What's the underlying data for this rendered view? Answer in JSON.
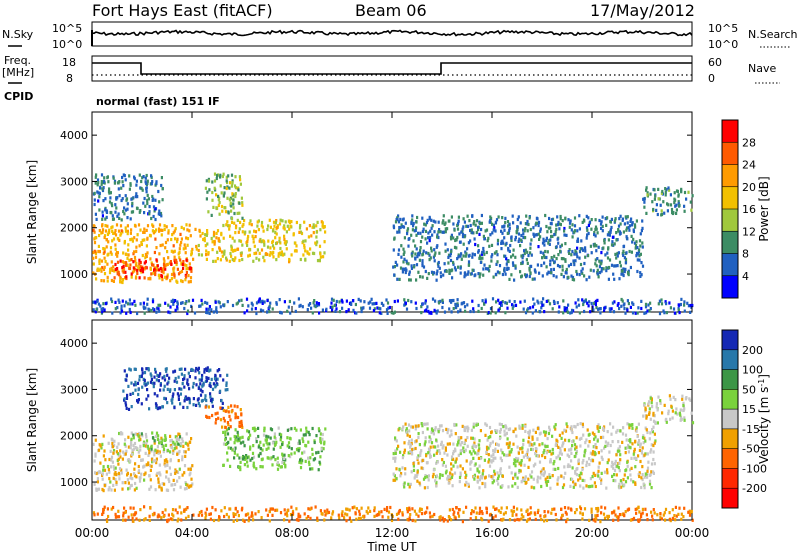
{
  "header": {
    "radar": "Fort Hays East (fitACF)",
    "beam": "Beam 06",
    "date": "17/May/2012"
  },
  "noise_panel": {
    "left_label": "N.Sky",
    "right_label": "N.Search",
    "left_ticks": [
      "10^5",
      "10^0"
    ],
    "right_ticks": [
      "10^5",
      "10^0"
    ]
  },
  "freq_panel": {
    "left_label_1": "Freq.",
    "left_label_2": "[MHz]",
    "right_label": "Nave",
    "left_ticks": [
      "18",
      "8"
    ],
    "right_ticks": [
      "60",
      "0"
    ],
    "cpid_label": "CPID",
    "cpid_value": "normal (fast) 151 IF"
  },
  "colorbars": {
    "power": {
      "label": "Power [dB]",
      "ticks": [
        "28",
        "24",
        "20",
        "16",
        "12",
        "8",
        "4"
      ],
      "colors": [
        "#ff0000",
        "#ff5a00",
        "#ff9b00",
        "#f2c000",
        "#a0c83c",
        "#3c8c64",
        "#2060c0",
        "#0000ff"
      ]
    },
    "velocity": {
      "label_main": "Velocity [m s",
      "label_sup": "-1",
      "label_end": "]",
      "ticks": [
        "200",
        "100",
        "50",
        "15",
        "-15",
        "-50",
        "-100",
        "-200"
      ],
      "colors": [
        "#1428b4",
        "#2878aa",
        "#3c9646",
        "#7ad23c",
        "#c8c8c8",
        "#f0a000",
        "#ff6400",
        "#ff2800",
        "#ff0000"
      ]
    }
  },
  "chart_data": {
    "type": "heatmap",
    "xlabel": "Time UT",
    "x_tick_labels": [
      "00:00",
      "04:00",
      "08:00",
      "12:00",
      "16:00",
      "20:00",
      "00:00"
    ],
    "xlim_hours": [
      0,
      24
    ],
    "ylabel": "Slant Range [km]",
    "y_tick_labels": [
      "1000",
      "2000",
      "3000",
      "4000"
    ],
    "ylim_km": [
      180,
      4500
    ],
    "panels": [
      {
        "name": "Power",
        "units": "dB",
        "scale": [
          0,
          30
        ],
        "regions": [
          {
            "t": [
              0,
              4.0
            ],
            "r": [
              850,
              2100
            ],
            "v": 20
          },
          {
            "t": [
              0.8,
              4.0
            ],
            "r": [
              950,
              1350
            ],
            "v": 28
          },
          {
            "t": [
              4.0,
              5.2
            ],
            "r": [
              1300,
              2000
            ],
            "v": 18
          },
          {
            "t": [
              5.2,
              9.3
            ],
            "r": [
              1300,
              2200
            ],
            "v": 16
          },
          {
            "t": [
              4.5,
              6.0
            ],
            "r": [
              2200,
              3200
            ],
            "v": 12
          },
          {
            "t": [
              0,
              2.8
            ],
            "r": [
              2200,
              3200
            ],
            "v": 6
          },
          {
            "t": [
              12.0,
              22.0
            ],
            "r": [
              900,
              2300
            ],
            "v": 6
          },
          {
            "t": [
              22.0,
              24.0
            ],
            "r": [
              2300,
              2900
            ],
            "v": 8
          },
          {
            "t": [
              0,
              24.0
            ],
            "r": [
              180,
              500
            ],
            "v": 4
          }
        ]
      },
      {
        "name": "Velocity",
        "units": "m s-1",
        "scale": [
          -200,
          200
        ],
        "regions": [
          {
            "t": [
              0,
              4.0
            ],
            "r": [
              850,
              2100
            ],
            "v": -10
          },
          {
            "t": [
              5.2,
              9.3
            ],
            "r": [
              1300,
              2200
            ],
            "v": 40
          },
          {
            "t": [
              1.5,
              3.5
            ],
            "r": [
              1700,
              2100
            ],
            "v": 30
          },
          {
            "t": [
              1.2,
              5.4
            ],
            "r": [
              2600,
              3500
            ],
            "v": 200
          },
          {
            "t": [
              4.5,
              6.0
            ],
            "r": [
              2200,
              2700
            ],
            "v": -60
          },
          {
            "t": [
              12.0,
              22.5
            ],
            "r": [
              900,
              2300
            ],
            "v": 0
          },
          {
            "t": [
              22.0,
              24.0
            ],
            "r": [
              2300,
              2900
            ],
            "v": 0
          },
          {
            "t": [
              0,
              24.0
            ],
            "r": [
              180,
              500
            ],
            "v": -50
          }
        ]
      }
    ]
  }
}
